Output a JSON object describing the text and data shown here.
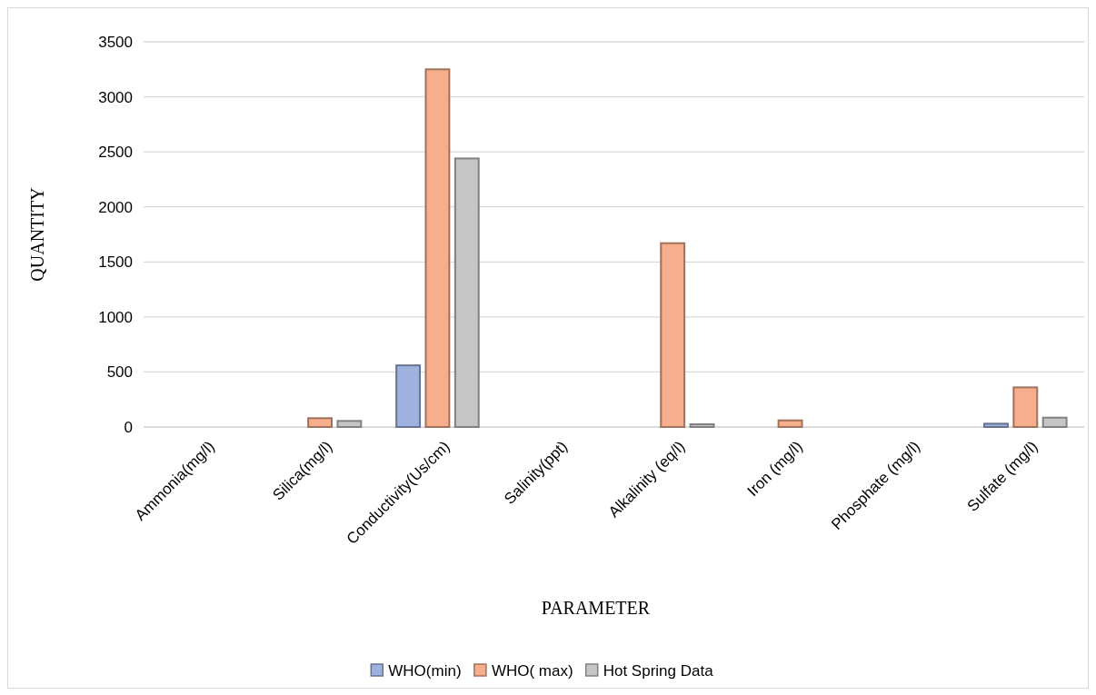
{
  "chart_data": {
    "type": "bar",
    "xlabel": "PARAMETER",
    "ylabel": "QUANTITY",
    "categories": [
      "Ammonia(mg/l)",
      "Silica(mg/l)",
      "Conductivity(Us/cm)",
      "Salinity(ppt)",
      "Alkalinity (eq/l)",
      "Iron (mg/l)",
      "Phosphate (mg/l)",
      "Sulfate (mg/l)"
    ],
    "series": [
      {
        "name": "WHO(min)",
        "color": "#9fb1df",
        "values": [
          0,
          null,
          560,
          0,
          0,
          0,
          0,
          30
        ]
      },
      {
        "name": "WHO( max)",
        "color": "#f6ae8c",
        "values": [
          0,
          80,
          3250,
          0,
          1670,
          60,
          0,
          360
        ]
      },
      {
        "name": "Hot Spring Data",
        "color": "#c6c6c6",
        "values": [
          0,
          55,
          2440,
          0,
          25,
          0,
          0,
          85
        ]
      }
    ],
    "ylim": [
      0,
      3500
    ],
    "yticks": [
      0,
      500,
      1000,
      1500,
      2000,
      2500,
      3000,
      3500
    ],
    "grid": "y",
    "legend": "bottom"
  }
}
